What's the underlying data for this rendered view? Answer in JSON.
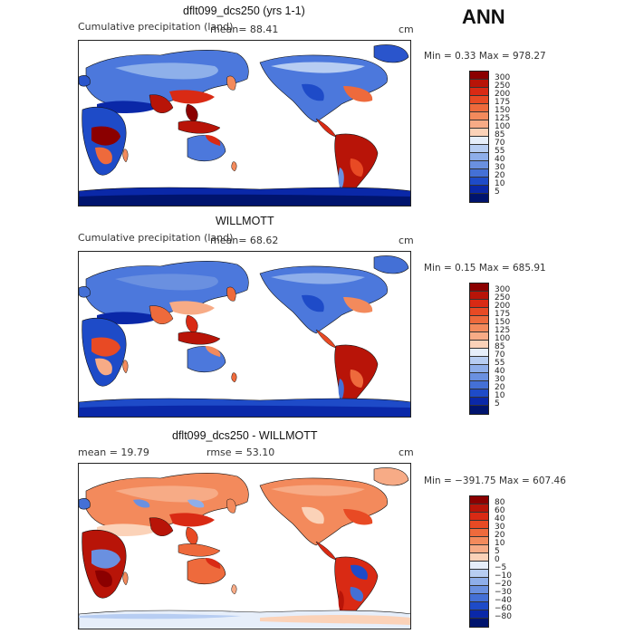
{
  "season": "ANN",
  "panels": [
    {
      "title": "dflt099_dcs250 (yrs 1-1)",
      "left_text": "Cumulative precipitation (land)",
      "mean_text": "mean=  88.41",
      "unit": "cm",
      "minmax": "Min =   0.33 Max = 978.27",
      "colorbar_labels": [
        "300",
        "250",
        "200",
        "175",
        "150",
        "125",
        "100",
        "85",
        "70",
        "55",
        "40",
        "30",
        "20",
        "10",
        "5"
      ],
      "colorbar_colors": [
        "#8b0000",
        "#b81408",
        "#d92a14",
        "#e84a24",
        "#ee6a3c",
        "#f38a5c",
        "#f7ab86",
        "#fbd2b8",
        "#e6eefa",
        "#b7cdf2",
        "#8eaeea",
        "#6a90e0",
        "#4470d6",
        "#1e4bc8",
        "#0a28a8",
        "#00146e"
      ]
    },
    {
      "title": "WILLMOTT",
      "left_text": "Cumulative precipitation (land)",
      "mean_text": "mean=  68.62",
      "unit": "cm",
      "minmax": "Min =   0.15 Max = 685.91",
      "colorbar_labels": [
        "300",
        "250",
        "200",
        "175",
        "150",
        "125",
        "100",
        "85",
        "70",
        "55",
        "40",
        "30",
        "20",
        "10",
        "5"
      ],
      "colorbar_colors": [
        "#8b0000",
        "#b81408",
        "#d92a14",
        "#e84a24",
        "#ee6a3c",
        "#f38a5c",
        "#f7ab86",
        "#fbd2b8",
        "#e6eefa",
        "#b7cdf2",
        "#8eaeea",
        "#6a90e0",
        "#4470d6",
        "#1e4bc8",
        "#0a28a8",
        "#00146e"
      ]
    },
    {
      "title": "dflt099_dcs250 - WILLMOTT",
      "left_text": "mean =  19.79",
      "mean_text": "rmse =  53.10",
      "unit": "cm",
      "minmax": "Min = −391.75 Max = 607.46",
      "colorbar_labels": [
        "80",
        "60",
        "40",
        "30",
        "20",
        "10",
        "5",
        "0",
        "−5",
        "−10",
        "−20",
        "−30",
        "−40",
        "−60",
        "−80"
      ],
      "colorbar_colors": [
        "#8b0000",
        "#b81408",
        "#d92a14",
        "#e84a24",
        "#ee6a3c",
        "#f38a5c",
        "#f7ab86",
        "#fbd2b8",
        "#e6eefa",
        "#b7cdf2",
        "#8eaeea",
        "#6a90e0",
        "#4470d6",
        "#1e4bc8",
        "#0a28a8",
        "#00146e"
      ]
    }
  ]
}
